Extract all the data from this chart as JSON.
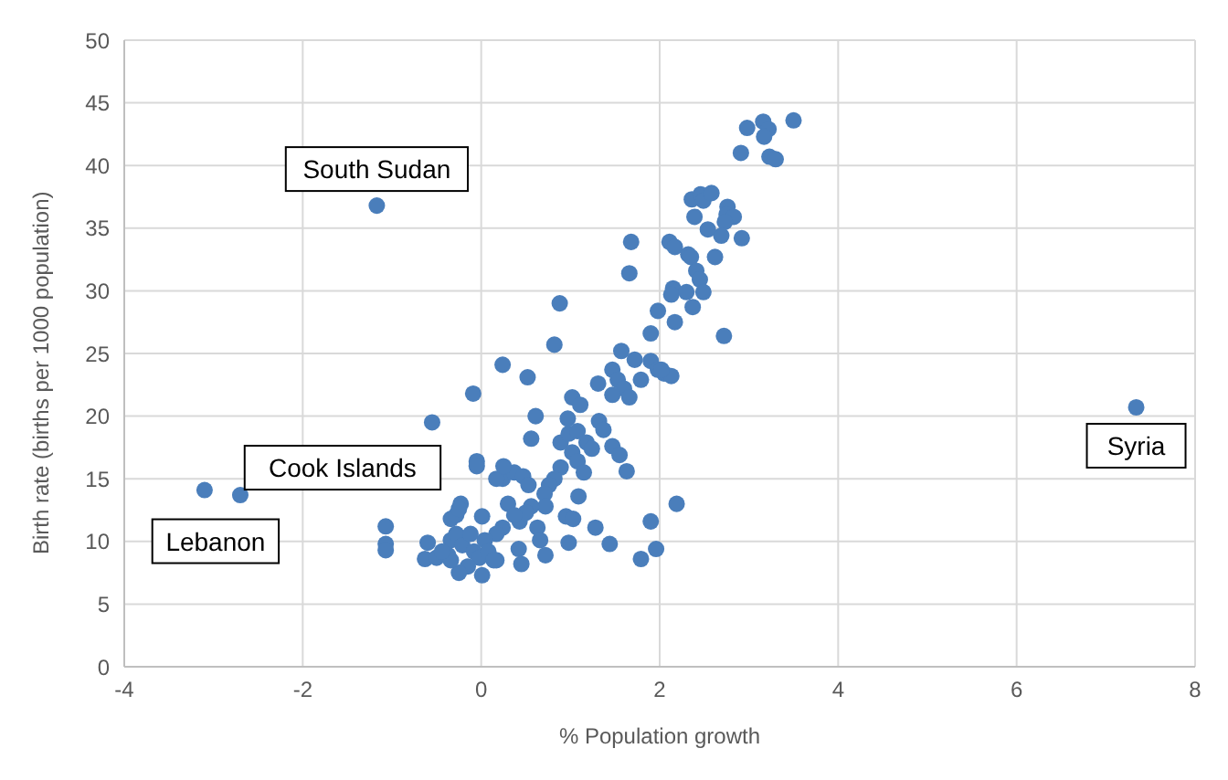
{
  "chart_data": {
    "type": "scatter",
    "xlabel": "% Population growth",
    "ylabel": "Birth rate (births per 1000 population)",
    "xlim": [
      -4,
      8
    ],
    "xticks": [
      -4,
      -2,
      0,
      2,
      4,
      6,
      8
    ],
    "ylim": [
      0,
      50
    ],
    "yticks": [
      0,
      5,
      10,
      15,
      20,
      25,
      30,
      35,
      40,
      45,
      50
    ],
    "grid": true,
    "marker": "circle",
    "annotations": [
      {
        "text": "South Sudan",
        "x": -1.17,
        "y": 36.8
      },
      {
        "text": "Cook Islands",
        "x": -2.7,
        "y": 13.7
      },
      {
        "text": "Lebanon",
        "x": -3.1,
        "y": 14.1
      },
      {
        "text": "Syria",
        "x": 7.34,
        "y": 20.7
      }
    ],
    "series": [
      {
        "color": "#4a7ebb",
        "x": [
          -1.17,
          -2.7,
          -3.1,
          7.34,
          -1.07,
          -1.07,
          -1.07,
          3.5,
          3.16,
          2.98,
          3.22,
          3.17,
          2.91,
          3.23,
          3.3,
          2.36,
          2.46,
          2.49,
          2.58,
          2.76,
          2.75,
          2.83,
          2.73,
          2.69,
          2.92,
          2.39,
          2.54,
          1.68,
          2.11,
          2.17,
          2.32,
          2.35,
          2.62,
          2.41,
          2.45,
          2.49,
          1.66,
          2.15,
          2.13,
          2.3,
          2.37,
          1.98,
          0.88,
          2.17,
          1.9,
          2.72,
          0.82,
          1.57,
          0.24,
          0.52,
          1.72,
          1.9,
          1.98,
          2.05,
          2.13,
          1.31,
          -0.09,
          -0.55,
          0.61,
          0.56,
          1.02,
          1.11,
          0.97,
          1.47,
          1.53,
          1.6,
          1.47,
          1.66,
          1.79,
          2.02,
          1.32,
          1.37,
          0.89,
          0.98,
          1.08,
          1.18,
          1.24,
          1.02,
          1.47,
          1.55,
          1.63,
          1.08,
          1.15,
          0.89,
          0.82,
          0.76,
          0.71,
          0.72,
          1.09,
          0.95,
          1.03,
          1.28,
          0.98,
          1.44,
          1.79,
          1.96,
          1.9,
          2.19,
          0.56,
          0.63,
          0.66,
          0.72,
          0.43,
          0.5,
          0.3,
          0.37,
          0.24,
          0.17,
          0.42,
          0.45,
          0.17,
          0.24,
          0.37,
          0.47,
          0.53,
          0.17,
          0.25,
          -0.05,
          -0.05,
          0.01,
          -0.23,
          -0.34,
          -0.28,
          -0.25,
          -0.6,
          -0.63,
          -0.5,
          -0.37,
          -0.34,
          -0.28,
          -0.21,
          -0.12,
          -0.08,
          -0.02,
          0.04,
          0.08,
          0.14,
          0.01,
          -0.15,
          -0.25,
          -0.34,
          -0.44
        ],
        "values": [
          36.8,
          13.7,
          14.1,
          20.7,
          11.2,
          9.8,
          9.3,
          43.6,
          43.5,
          43,
          42.9,
          42.3,
          41,
          40.7,
          40.5,
          37.3,
          37.7,
          37.2,
          37.8,
          36.7,
          36.1,
          35.9,
          35.5,
          34.4,
          34.2,
          35.9,
          34.9,
          33.9,
          33.9,
          33.5,
          32.9,
          32.7,
          32.7,
          31.6,
          30.9,
          29.9,
          31.4,
          30.2,
          29.7,
          29.9,
          28.7,
          28.4,
          29,
          27.5,
          26.6,
          26.4,
          25.7,
          25.2,
          24.1,
          23.1,
          24.5,
          24.4,
          23.7,
          23.4,
          23.2,
          22.6,
          21.8,
          19.5,
          20,
          18.2,
          21.5,
          20.9,
          19.8,
          23.7,
          22.9,
          22.2,
          21.7,
          21.5,
          22.9,
          23.7,
          19.6,
          18.9,
          17.9,
          18.6,
          18.8,
          17.9,
          17.4,
          17.1,
          17.6,
          16.9,
          15.6,
          16.4,
          15.5,
          15.9,
          15,
          14.5,
          13.8,
          12.8,
          13.6,
          12,
          11.8,
          11.1,
          9.9,
          9.8,
          8.6,
          9.4,
          11.6,
          13,
          12.8,
          11.1,
          10.1,
          8.9,
          11.6,
          12.3,
          13,
          12.1,
          11.1,
          10.6,
          9.4,
          8.2,
          8.5,
          15,
          15.5,
          15.2,
          14.5,
          15,
          16,
          16.4,
          16,
          12,
          13,
          11.8,
          12.1,
          12.6,
          9.9,
          8.6,
          8.7,
          8.9,
          10.1,
          10.6,
          9.7,
          10.6,
          9.2,
          8.7,
          10.1,
          9.2,
          8.5,
          7.3,
          8,
          7.5,
          8.5,
          9.2
        ]
      }
    ]
  }
}
